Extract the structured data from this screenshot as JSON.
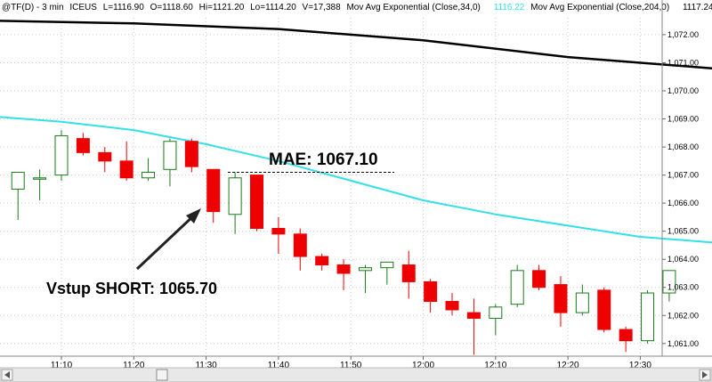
{
  "header": {
    "symbol": "@TF(D) - 3 min",
    "exchange": "ICEUS",
    "last": "L=1116.90",
    "open": "O=1118.60",
    "high": "Hi=1121.20",
    "low": "Lo=1114.20",
    "volume": "V=17,388",
    "ma1_label": "Mov Avg Exponential (Close,34,0)",
    "ma1_value": "1116.22",
    "ma2_label": "Mov Avg Exponential (Close,204,0)",
    "ma2_value": "1117.24"
  },
  "colors": {
    "up_candle": "#1a7a1a",
    "down_candle": "#ee0000",
    "ema_fast": "#33e0e8",
    "ema_slow": "#000000",
    "grid": "#c8c8c8"
  },
  "annotations": {
    "mae": "MAE: 1067.10",
    "entry": "Vstup SHORT: 1065.70"
  },
  "chart_data": {
    "type": "candlestick",
    "interval": "3 min",
    "ylim": [
      1060.55,
      1072.6
    ],
    "yticks": [
      "1,061.00",
      "1,062.00",
      "1,063.00",
      "1,064.00",
      "1,065.00",
      "1,066.00",
      "1,067.00",
      "1,068.00",
      "1,069.00",
      "1,070.00",
      "1,071.00",
      "1,072.00"
    ],
    "ytick_values": [
      1061,
      1062,
      1063,
      1064,
      1065,
      1066,
      1067,
      1068,
      1069,
      1070,
      1071,
      1072
    ],
    "xticks": [
      "11:10",
      "11:20",
      "11:30",
      "11:40",
      "11:50",
      "12:00",
      "12:10",
      "12:20",
      "12:30"
    ],
    "xtick_minutes": [
      670,
      680,
      690,
      700,
      710,
      720,
      730,
      740,
      750
    ],
    "candles": [
      {
        "time": "11:04",
        "open": 1066.5,
        "high": 1067.1,
        "low": 1065.4,
        "close": 1067.1
      },
      {
        "time": "11:07",
        "open": 1066.9,
        "high": 1067.2,
        "low": 1066.1,
        "close": 1066.9
      },
      {
        "time": "11:10",
        "open": 1067.0,
        "high": 1068.6,
        "low": 1066.8,
        "close": 1068.4
      },
      {
        "time": "11:13",
        "open": 1068.3,
        "high": 1068.5,
        "low": 1067.7,
        "close": 1067.8
      },
      {
        "time": "11:16",
        "open": 1067.8,
        "high": 1068.0,
        "low": 1067.1,
        "close": 1067.5
      },
      {
        "time": "11:19",
        "open": 1067.5,
        "high": 1068.2,
        "low": 1066.8,
        "close": 1066.9
      },
      {
        "time": "11:22",
        "open": 1066.9,
        "high": 1067.6,
        "low": 1066.8,
        "close": 1067.1
      },
      {
        "time": "11:25",
        "open": 1067.2,
        "high": 1068.3,
        "low": 1066.6,
        "close": 1068.2
      },
      {
        "time": "11:28",
        "open": 1068.2,
        "high": 1068.3,
        "low": 1067.1,
        "close": 1067.3
      },
      {
        "time": "11:31",
        "open": 1067.2,
        "high": 1067.2,
        "low": 1065.3,
        "close": 1065.7
      },
      {
        "time": "11:34",
        "open": 1065.6,
        "high": 1067.1,
        "low": 1064.9,
        "close": 1066.9
      },
      {
        "time": "11:37",
        "open": 1067.0,
        "high": 1067.0,
        "low": 1065.0,
        "close": 1065.1
      },
      {
        "time": "11:40",
        "open": 1065.1,
        "high": 1065.5,
        "low": 1064.2,
        "close": 1064.9
      },
      {
        "time": "11:43",
        "open": 1064.9,
        "high": 1065.1,
        "low": 1063.6,
        "close": 1064.1
      },
      {
        "time": "11:46",
        "open": 1064.1,
        "high": 1064.2,
        "low": 1063.6,
        "close": 1063.8
      },
      {
        "time": "11:49",
        "open": 1063.8,
        "high": 1064.0,
        "low": 1062.9,
        "close": 1063.5
      },
      {
        "time": "11:52",
        "open": 1063.6,
        "high": 1063.8,
        "low": 1062.8,
        "close": 1063.7
      },
      {
        "time": "11:55",
        "open": 1063.7,
        "high": 1063.9,
        "low": 1063.1,
        "close": 1063.9
      },
      {
        "time": "11:58",
        "open": 1063.8,
        "high": 1064.3,
        "low": 1062.6,
        "close": 1063.2
      },
      {
        "time": "12:01",
        "open": 1063.2,
        "high": 1063.3,
        "low": 1062.1,
        "close": 1062.5
      },
      {
        "time": "12:04",
        "open": 1062.5,
        "high": 1062.8,
        "low": 1062.0,
        "close": 1062.2
      },
      {
        "time": "12:07",
        "open": 1062.1,
        "high": 1062.6,
        "low": 1060.6,
        "close": 1061.9
      },
      {
        "time": "12:10",
        "open": 1061.9,
        "high": 1062.4,
        "low": 1061.3,
        "close": 1062.3
      },
      {
        "time": "12:13",
        "open": 1062.4,
        "high": 1063.8,
        "low": 1062.3,
        "close": 1063.6
      },
      {
        "time": "12:16",
        "open": 1063.6,
        "high": 1063.8,
        "low": 1062.9,
        "close": 1063.0
      },
      {
        "time": "12:19",
        "open": 1063.1,
        "high": 1063.4,
        "low": 1061.6,
        "close": 1062.1
      },
      {
        "time": "12:22",
        "open": 1062.1,
        "high": 1063.1,
        "low": 1062.0,
        "close": 1062.8
      },
      {
        "time": "12:25",
        "open": 1062.9,
        "high": 1063.0,
        "low": 1061.4,
        "close": 1061.5
      },
      {
        "time": "12:28",
        "open": 1061.5,
        "high": 1061.6,
        "low": 1060.7,
        "close": 1061.1
      },
      {
        "time": "12:31",
        "open": 1061.1,
        "high": 1062.9,
        "low": 1061.0,
        "close": 1062.8
      },
      {
        "time": "12:34",
        "open": 1062.8,
        "high": 1063.6,
        "low": 1062.5,
        "close": 1063.6
      }
    ],
    "ema34": {
      "minutes": [
        660,
        670,
        680,
        690,
        700,
        710,
        720,
        730,
        740,
        750,
        760
      ],
      "values": [
        1069.1,
        1068.9,
        1068.6,
        1068.1,
        1067.5,
        1066.8,
        1066.1,
        1065.6,
        1065.2,
        1064.8,
        1064.6
      ]
    },
    "ema204": {
      "minutes": [
        660,
        680,
        700,
        720,
        740,
        760
      ],
      "values": [
        1072.5,
        1072.4,
        1072.2,
        1071.8,
        1071.2,
        1070.8
      ]
    },
    "mae_value": 1067.1
  }
}
